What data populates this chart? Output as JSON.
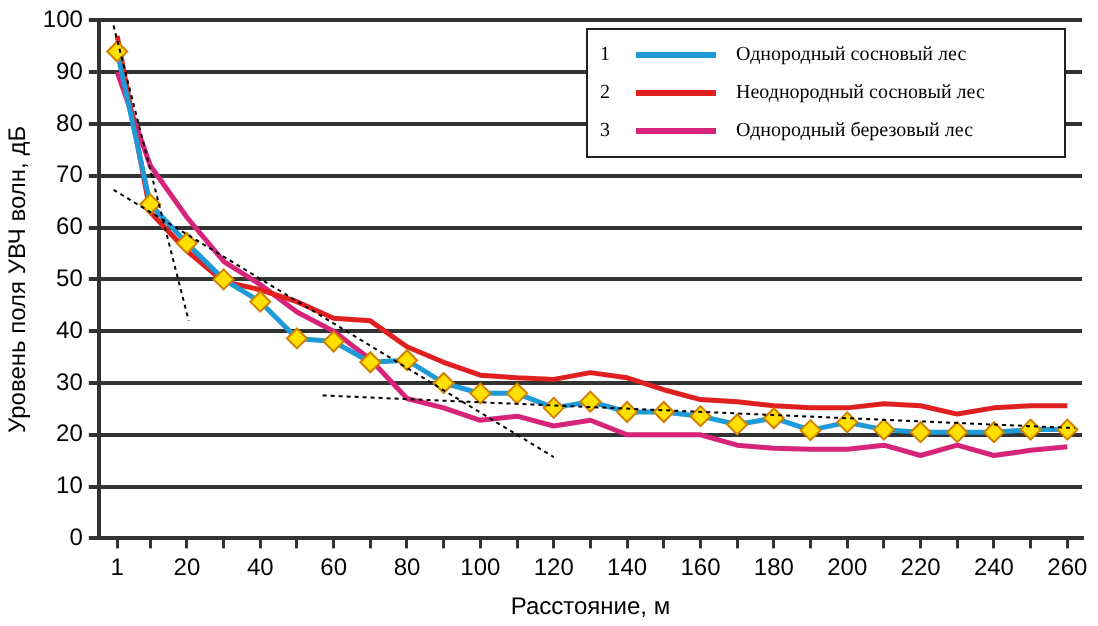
{
  "chart_data": {
    "type": "line",
    "xlabel": "Расстояние, м",
    "ylabel": "Уровень поля УВЧ волн, дБ",
    "x": [
      1,
      10,
      20,
      30,
      40,
      50,
      60,
      70,
      80,
      90,
      100,
      110,
      120,
      130,
      140,
      150,
      160,
      170,
      180,
      190,
      200,
      210,
      220,
      230,
      240,
      250,
      260
    ],
    "xlim": [
      -4,
      264
    ],
    "xticks": [
      1,
      {
        "value": 10,
        "label": null
      },
      20,
      {
        "value": 30,
        "label": null
      },
      40,
      {
        "value": 50,
        "label": null
      },
      60,
      {
        "value": 70,
        "label": null
      },
      80,
      {
        "value": 90,
        "label": null
      },
      100,
      {
        "value": 110,
        "label": null
      },
      120,
      {
        "value": 130,
        "label": null
      },
      140,
      {
        "value": 150,
        "label": null
      },
      160,
      {
        "value": 170,
        "label": null
      },
      180,
      {
        "value": 190,
        "label": null
      },
      200,
      {
        "value": 210,
        "label": null
      },
      220,
      {
        "value": 230,
        "label": null
      },
      240,
      {
        "value": 250,
        "label": null
      },
      260
    ],
    "ylim": [
      0,
      100
    ],
    "yticks": [
      0,
      10,
      20,
      30,
      40,
      50,
      60,
      70,
      80,
      90,
      100
    ],
    "grid": "y",
    "legend": "top right",
    "line_style": "solid",
    "annotations": [
      "1",
      "2",
      "3"
    ],
    "series": [
      {
        "name": "Однородный сосновый лес",
        "color": "#1e9ad6",
        "marker": "diamond",
        "values": [
          94,
          64.5,
          57,
          50,
          45.7,
          38.6,
          38,
          34,
          34.4,
          30,
          28,
          28,
          25.2,
          26.4,
          24.4,
          24.4,
          23.6,
          22,
          23.2,
          20.9,
          22.4,
          21,
          20.5,
          20.5,
          20.5,
          21,
          21
        ]
      },
      {
        "name": "Неоднородный сосновый лес",
        "color": "#e02020",
        "marker": "none",
        "values": [
          97,
          63,
          55.5,
          49.6,
          48,
          45.7,
          42.5,
          42,
          37,
          34,
          31.5,
          31,
          30.7,
          32,
          31,
          28.7,
          26.8,
          26.4,
          25.6,
          25.2,
          25.2,
          26,
          25.6,
          24,
          25.2,
          25.6,
          25.6
        ]
      },
      {
        "name": "Однородный березовый лес",
        "color": "#d6247a",
        "marker": "none",
        "values": [
          90,
          72,
          62,
          53.5,
          49,
          43.7,
          40,
          34.6,
          27,
          25.2,
          22.8,
          23.6,
          21.7,
          22.8,
          20,
          20,
          20,
          18,
          17.4,
          17.2,
          17.2,
          18,
          16,
          18,
          16,
          17,
          17.7
        ]
      },
      {
        "type": "line",
        "color": "#000000",
        "marker": "none",
        "line_style": "dotted",
        "x": [
          0,
          20.5
        ],
        "values": [
          99,
          42
        ]
      },
      {
        "type": "line",
        "color": "#000000",
        "marker": "none",
        "line_style": "dotted",
        "x": [
          0,
          120
        ],
        "values": [
          67.3,
          15.7
        ]
      },
      {
        "type": "line",
        "color": "#000000",
        "marker": "none",
        "line_style": "dotted",
        "x": [
          57,
          262
        ],
        "values": [
          27.6,
          21.3
        ]
      }
    ]
  }
}
